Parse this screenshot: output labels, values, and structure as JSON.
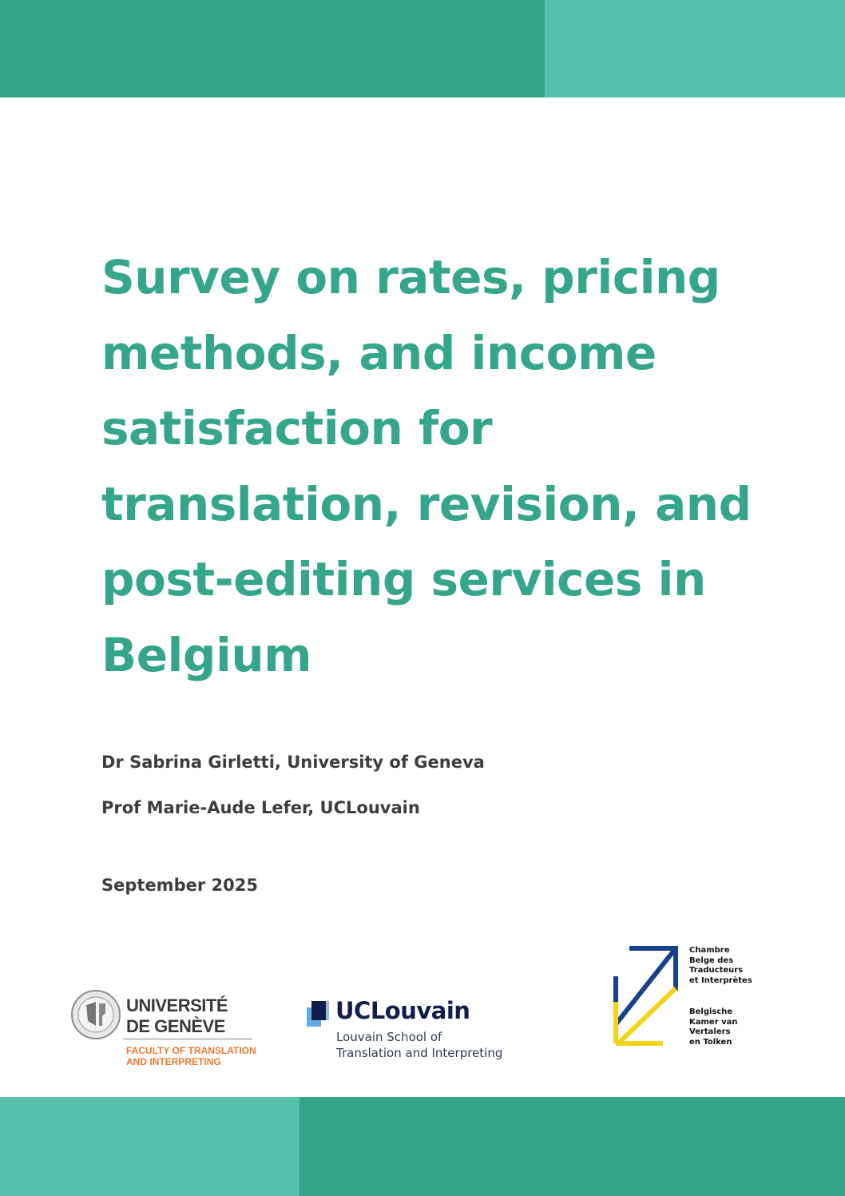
{
  "colors": {
    "teal_dark": "#34a489",
    "teal_light": "#55c0ab",
    "title": "#35a68a"
  },
  "title": "Survey on rates, pricing methods, and income satisfaction for translation, revision, and post-editing services in Belgium",
  "authors": [
    "Dr Sabrina Girletti, University of Geneva",
    "Prof Marie-Aude Lefer, UCLouvain"
  ],
  "date": "September 2025",
  "logos": {
    "unige": {
      "line1": "UNIVERSITÉ",
      "line2": "DE GENÈVE",
      "faculty1": "FACULTY OF TRANSLATION",
      "faculty2": "AND INTERPRETING"
    },
    "uclouvain": {
      "name": "UCLouvain",
      "sub1": "Louvain School of",
      "sub2": "Translation and Interpreting"
    },
    "cbti": {
      "fr1": "Chambre",
      "fr2": "Belge des",
      "fr3": "Traducteurs",
      "fr4": "et Interprètes",
      "nl1": "Belgische",
      "nl2": "Kamer van",
      "nl3": "Vertalers",
      "nl4": "en Tolken"
    }
  }
}
